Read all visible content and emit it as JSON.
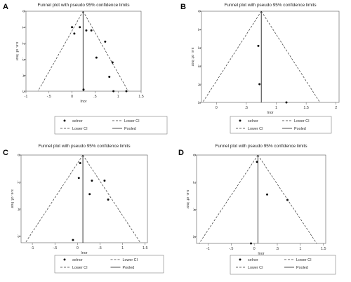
{
  "figure": {
    "panels": [
      {
        "label": "A",
        "title": "Funnel plot with pseudo 95% confidence limits",
        "ylabel": "s.e. of: lnor",
        "xlabel": "lnor",
        "xticks": [
          "-1",
          "-.5",
          "0",
          ".5",
          "1",
          "1.5"
        ],
        "yticks": [
          "0",
          ".1",
          ".2",
          ".3",
          ".4",
          ".5"
        ],
        "legend": [
          "selnor",
          "Lower CI",
          "Lower CI",
          "Pooled"
        ]
      },
      {
        "label": "B",
        "title": "Funnel plot with pseudo 95% confidence limits",
        "ylabel": "s.e. of: lnor",
        "xlabel": "lnor",
        "xticks": [
          "0",
          ".5",
          "1",
          "1.5",
          "2"
        ],
        "yticks": [
          "0",
          ".1",
          ".2",
          ".3",
          ".4",
          ".5"
        ],
        "legend": [
          "selnor",
          "Lower CI",
          "Lower CI",
          "Pooled"
        ]
      },
      {
        "label": "C",
        "title": "Funnel plot with pseudo 95% confidence limits",
        "ylabel": "s.e. of: lnor",
        "xlabel": "lnor",
        "xticks": [
          "-1",
          "-.5",
          "0",
          ".5",
          "1",
          "1.5"
        ],
        "yticks": [
          "0",
          ".2",
          ".4",
          ".6"
        ],
        "legend": [
          "selnor",
          "Lower CI",
          "Lower CI",
          "Pooled"
        ]
      },
      {
        "label": "D",
        "title": "Funnel plot with pseudo 95% confidence limits",
        "ylabel": "s.e. of: lnor",
        "xlabel": "lnor",
        "xticks": [
          "-1",
          "-.5",
          "0",
          ".5",
          "1",
          "1.5"
        ],
        "yticks": [
          "0",
          ".2",
          ".4",
          ".6"
        ],
        "legend": [
          "selnor",
          "Lower CI",
          "Lower CI",
          "Pooled"
        ]
      }
    ]
  },
  "chart_data": [
    {
      "type": "scatter",
      "title": "Funnel plot with pseudo 95% confidence limits",
      "xlabel": "lnor",
      "ylabel": "s.e. of: lnor",
      "xlim": [
        -1,
        1.5
      ],
      "ylim": [
        0,
        0.5
      ],
      "y_reversed": true,
      "pooled": 0.24,
      "series": [
        {
          "name": "selnor",
          "points": [
            {
              "x": 0,
              "y": 0.1
            },
            {
              "x": 0.05,
              "y": 0.14
            },
            {
              "x": 0.17,
              "y": 0.1
            },
            {
              "x": 0.31,
              "y": 0.12
            },
            {
              "x": 0.42,
              "y": 0.12
            },
            {
              "x": 0.53,
              "y": 0.29
            },
            {
              "x": 0.72,
              "y": 0.19
            },
            {
              "x": 0.88,
              "y": 0.32
            },
            {
              "x": 0.81,
              "y": 0.41
            },
            {
              "x": 0.25,
              "y": 0.49
            },
            {
              "x": 0.9,
              "y": 0.5
            },
            {
              "x": 1.18,
              "y": 0.5
            }
          ]
        }
      ],
      "legend": [
        "selnor",
        "Lower CI",
        "Lower CI",
        "Pooled"
      ]
    },
    {
      "type": "scatter",
      "title": "Funnel plot with pseudo 95% confidence limits",
      "xlabel": "lnor",
      "ylabel": "s.e. of: lnor",
      "xlim": [
        -0.25,
        2.05
      ],
      "ylim": [
        0,
        0.5
      ],
      "y_reversed": true,
      "pooled": 0.75,
      "series": [
        {
          "name": "selnor",
          "points": [
            {
              "x": 0.7,
              "y": 0.19
            },
            {
              "x": 0.72,
              "y": 0.4
            },
            {
              "x": 1.17,
              "y": 0.5
            }
          ]
        }
      ],
      "legend": [
        "selnor",
        "Lower CI",
        "Lower CI",
        "Pooled"
      ]
    },
    {
      "type": "scatter",
      "title": "Funnel plot with pseudo 95% confidence limits",
      "xlabel": "lnor",
      "ylabel": "s.e. of: lnor",
      "xlim": [
        -1.25,
        1.55
      ],
      "ylim": [
        0,
        0.65
      ],
      "y_reversed": true,
      "pooled": 0.12,
      "series": [
        {
          "name": "selnor",
          "points": [
            {
              "x": 0.06,
              "y": 0.06
            },
            {
              "x": 0.03,
              "y": 0.17
            },
            {
              "x": 0.32,
              "y": 0.19
            },
            {
              "x": 0.6,
              "y": 0.19
            },
            {
              "x": 0.68,
              "y": 0.33
            },
            {
              "x": 0.27,
              "y": 0.29
            },
            {
              "x": -0.1,
              "y": 0.63
            }
          ]
        }
      ],
      "legend": [
        "selnor",
        "Lower CI",
        "Lower CI",
        "Pooled"
      ]
    },
    {
      "type": "scatter",
      "title": "Funnel plot with pseudo 95% confidence limits",
      "xlabel": "lnor",
      "ylabel": "s.e. of: lnor",
      "xlim": [
        -1.25,
        1.55
      ],
      "ylim": [
        0,
        0.65
      ],
      "y_reversed": true,
      "pooled": 0.08,
      "series": [
        {
          "name": "selnor",
          "points": [
            {
              "x": 0.06,
              "y": 0.05
            },
            {
              "x": 0.28,
              "y": 0.29
            },
            {
              "x": 0.72,
              "y": 0.33
            },
            {
              "x": -0.07,
              "y": 0.65
            }
          ]
        }
      ],
      "legend": [
        "selnor",
        "Lower CI",
        "Lower CI",
        "Pooled"
      ]
    }
  ]
}
